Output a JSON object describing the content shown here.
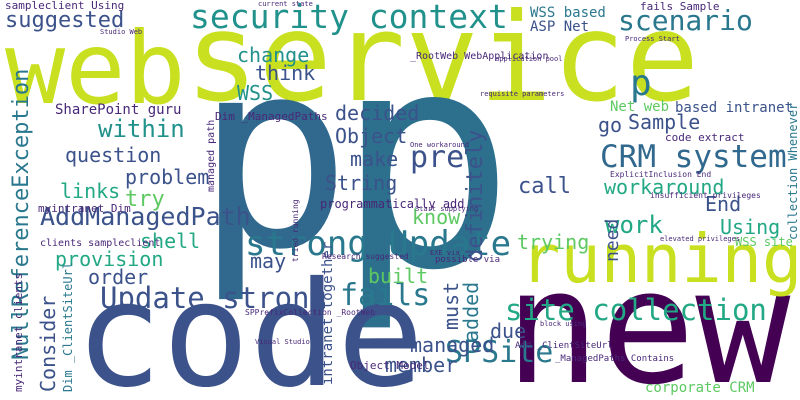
{
  "words": [
    "web",
    "service",
    "p",
    "p",
    "code",
    "new",
    "running",
    "security context",
    "strong Update",
    "Update strong",
    "fails",
    "site collection",
    "SPSite",
    "CRM system",
    "scenario",
    "pre",
    "p",
    "AddManagedPath",
    "NullReferenceException",
    "Consider",
    "myintranet clients",
    "suggested",
    "sampleclient Using",
    "change",
    "think",
    "Dim _ManagedPaths",
    "WSS",
    "within",
    "question",
    "problem",
    "try",
    "links",
    "myintranet Dim",
    "shell",
    "provision",
    "order",
    "clients sampleclient",
    "SharePoint guru",
    "decided",
    "Object",
    "make",
    "String",
    "programmatically add",
    "know",
    "may",
    "built",
    "must",
    "added",
    "definitely",
    "managed",
    "member",
    "due",
    "intranet together",
    "Object Model",
    "call",
    "go",
    "Sample",
    "workaround",
    "End",
    "work",
    "Using",
    "trying",
    "need",
    "WSS based",
    "ASP Net",
    "fails Sample",
    "based intranet",
    "collection Whenever",
    "Net web",
    "code extract",
    "WSS site",
    "corporate CRM",
    "_RootWeb WebApplication",
    "_ManagedPaths Contains",
    "Add _ClientSiteUrl",
    "Research suggested",
    "possible via",
    "SPPrefixCollection _RootWeb",
    "managed path",
    "Dim _ClientSiteUrl",
    "current state",
    "Studio Web",
    "Visual Studio",
    "block using",
    "elevated privileges",
    "insufficient privileges",
    "ExplicitInclusion End",
    "tried running",
    "application pool",
    "requisite parameters",
    "One workaround",
    "Start supplying",
    "EXE via",
    "Process Start"
  ]
}
